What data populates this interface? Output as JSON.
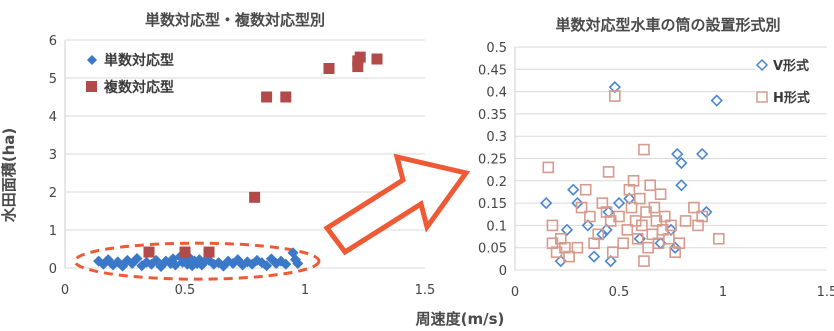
{
  "xlabel_shared": "周速度(m/s)",
  "colors": {
    "single": "#3b78c8",
    "multi": "#b34a4a",
    "v_type": "#4a86d0",
    "h_type": "#d79a8c",
    "arrow": "#ee5a35",
    "ellipse": "#ee5a35",
    "grid": "#d9d9d9"
  },
  "chart_data": [
    {
      "type": "scatter",
      "title": "単数対応型・複数対応型別",
      "xlabel": "",
      "ylabel": "水田面積(ha)",
      "xlim": [
        0,
        1.5
      ],
      "ylim": [
        0,
        6
      ],
      "xticks": [
        "0",
        "0.5",
        "1",
        "1.5"
      ],
      "yticks": [
        "0",
        "1",
        "2",
        "3",
        "4",
        "5",
        "6"
      ],
      "grid": true,
      "legend": "top-left",
      "series": [
        {
          "name": "単数対応型",
          "marker": "diamond",
          "points": [
            [
              0.14,
              0.18
            ],
            [
              0.16,
              0.1
            ],
            [
              0.18,
              0.22
            ],
            [
              0.2,
              0.08
            ],
            [
              0.22,
              0.16
            ],
            [
              0.24,
              0.05
            ],
            [
              0.26,
              0.2
            ],
            [
              0.28,
              0.12
            ],
            [
              0.3,
              0.25
            ],
            [
              0.32,
              0.06
            ],
            [
              0.34,
              0.15
            ],
            [
              0.36,
              0.1
            ],
            [
              0.38,
              0.2
            ],
            [
              0.4,
              0.04
            ],
            [
              0.42,
              0.18
            ],
            [
              0.44,
              0.12
            ],
            [
              0.45,
              0.24
            ],
            [
              0.46,
              0.08
            ],
            [
              0.48,
              0.3
            ],
            [
              0.49,
              0.15
            ],
            [
              0.5,
              0.2
            ],
            [
              0.51,
              0.1
            ],
            [
              0.52,
              0.26
            ],
            [
              0.53,
              0.06
            ],
            [
              0.54,
              0.18
            ],
            [
              0.55,
              0.12
            ],
            [
              0.56,
              0.22
            ],
            [
              0.57,
              0.08
            ],
            [
              0.58,
              0.16
            ],
            [
              0.6,
              0.2
            ],
            [
              0.62,
              0.1
            ],
            [
              0.64,
              0.14
            ],
            [
              0.66,
              0.05
            ],
            [
              0.68,
              0.18
            ],
            [
              0.7,
              0.12
            ],
            [
              0.72,
              0.22
            ],
            [
              0.74,
              0.08
            ],
            [
              0.76,
              0.16
            ],
            [
              0.78,
              0.1
            ],
            [
              0.8,
              0.2
            ],
            [
              0.82,
              0.14
            ],
            [
              0.84,
              0.06
            ],
            [
              0.86,
              0.24
            ],
            [
              0.88,
              0.12
            ],
            [
              0.9,
              0.18
            ],
            [
              0.92,
              0.1
            ],
            [
              0.95,
              0.4
            ],
            [
              0.96,
              0.22
            ],
            [
              0.97,
              0.12
            ]
          ]
        },
        {
          "name": "複数対応型",
          "marker": "square",
          "points": [
            [
              0.35,
              0.42
            ],
            [
              0.5,
              0.42
            ],
            [
              0.6,
              0.42
            ],
            [
              0.79,
              1.86
            ],
            [
              0.84,
              4.5
            ],
            [
              0.92,
              4.5
            ],
            [
              1.1,
              5.25
            ],
            [
              1.22,
              5.3
            ],
            [
              1.22,
              5.45
            ],
            [
              1.23,
              5.55
            ],
            [
              1.3,
              5.5
            ]
          ]
        }
      ]
    },
    {
      "type": "scatter",
      "title": "単数対応型水車の筒の設置形式別",
      "xlabel": "",
      "ylabel": "",
      "xlim": [
        0,
        1.5
      ],
      "ylim": [
        0,
        0.5
      ],
      "xticks": [
        "0",
        "0.5",
        "1",
        "1.5"
      ],
      "yticks": [
        "0",
        "0.05",
        "0.1",
        "0.15",
        "0.2",
        "0.25",
        "0.3",
        "0.35",
        "0.4",
        "0.45",
        "0.5"
      ],
      "grid": true,
      "legend": "top-right",
      "series": [
        {
          "name": "V形式",
          "marker": "diamond-open",
          "points": [
            [
              0.15,
              0.15
            ],
            [
              0.22,
              0.02
            ],
            [
              0.25,
              0.09
            ],
            [
              0.28,
              0.18
            ],
            [
              0.3,
              0.15
            ],
            [
              0.35,
              0.1
            ],
            [
              0.38,
              0.03
            ],
            [
              0.42,
              0.08
            ],
            [
              0.44,
              0.09
            ],
            [
              0.45,
              0.13
            ],
            [
              0.46,
              0.02
            ],
            [
              0.48,
              0.41
            ],
            [
              0.5,
              0.15
            ],
            [
              0.55,
              0.16
            ],
            [
              0.6,
              0.07
            ],
            [
              0.7,
              0.06
            ],
            [
              0.75,
              0.09
            ],
            [
              0.77,
              0.05
            ],
            [
              0.78,
              0.26
            ],
            [
              0.8,
              0.24
            ],
            [
              0.8,
              0.19
            ],
            [
              0.9,
              0.26
            ],
            [
              0.92,
              0.13
            ],
            [
              0.97,
              0.38
            ]
          ]
        },
        {
          "name": "H形式",
          "marker": "square-open",
          "points": [
            [
              0.16,
              0.23
            ],
            [
              0.18,
              0.1
            ],
            [
              0.18,
              0.06
            ],
            [
              0.2,
              0.04
            ],
            [
              0.22,
              0.07
            ],
            [
              0.24,
              0.05
            ],
            [
              0.26,
              0.03
            ],
            [
              0.3,
              0.05
            ],
            [
              0.32,
              0.14
            ],
            [
              0.34,
              0.18
            ],
            [
              0.36,
              0.12
            ],
            [
              0.38,
              0.06
            ],
            [
              0.4,
              0.08
            ],
            [
              0.42,
              0.15
            ],
            [
              0.44,
              0.13
            ],
            [
              0.45,
              0.22
            ],
            [
              0.46,
              0.11
            ],
            [
              0.47,
              0.04
            ],
            [
              0.48,
              0.39
            ],
            [
              0.5,
              0.12
            ],
            [
              0.52,
              0.06
            ],
            [
              0.54,
              0.09
            ],
            [
              0.55,
              0.18
            ],
            [
              0.56,
              0.14
            ],
            [
              0.57,
              0.2
            ],
            [
              0.58,
              0.11
            ],
            [
              0.59,
              0.07
            ],
            [
              0.6,
              0.16
            ],
            [
              0.61,
              0.1
            ],
            [
              0.62,
              0.27
            ],
            [
              0.62,
              0.02
            ],
            [
              0.63,
              0.13
            ],
            [
              0.64,
              0.05
            ],
            [
              0.65,
              0.19
            ],
            [
              0.66,
              0.08
            ],
            [
              0.67,
              0.14
            ],
            [
              0.68,
              0.11
            ],
            [
              0.69,
              0.06
            ],
            [
              0.7,
              0.17
            ],
            [
              0.71,
              0.09
            ],
            [
              0.72,
              0.12
            ],
            [
              0.74,
              0.07
            ],
            [
              0.75,
              0.1
            ],
            [
              0.77,
              0.04
            ],
            [
              0.79,
              0.06
            ],
            [
              0.82,
              0.11
            ],
            [
              0.86,
              0.14
            ],
            [
              0.88,
              0.1
            ],
            [
              0.9,
              0.12
            ],
            [
              0.98,
              0.07
            ]
          ]
        }
      ]
    }
  ]
}
